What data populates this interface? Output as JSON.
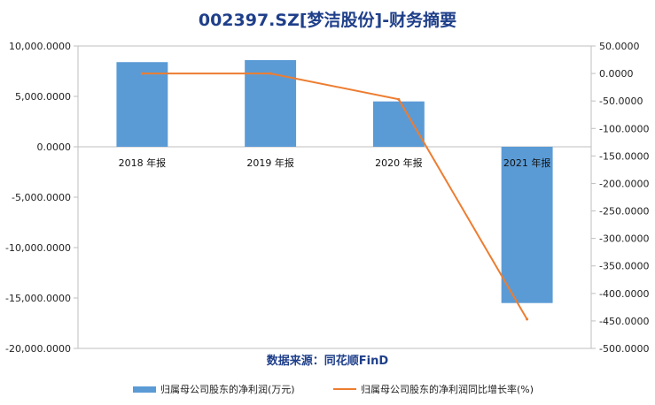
{
  "chart_data": {
    "type": "bar",
    "title": "002397.SZ[梦洁股份]-财务摘要",
    "categories": [
      "2018 年报",
      "2019 年报",
      "2020 年报",
      "2021 年报"
    ],
    "series": [
      {
        "name": "归属母公司股东的净利润(万元)",
        "type": "bar",
        "axis": "left",
        "color": "#5b9bd5",
        "values": [
          8400,
          8600,
          4500,
          -15500
        ]
      },
      {
        "name": "归属母公司股东的净利润同比增长率(%)",
        "type": "line",
        "axis": "right",
        "color": "#ed7d31",
        "values": [
          0.0,
          0.0,
          -47.0,
          -447.0
        ]
      }
    ],
    "left_axis": {
      "ylim": [
        -20000,
        10000
      ],
      "ticks": [
        "10,000.0000",
        "5,000.0000",
        "0.0000",
        "-5,000.0000",
        "-10,000.0000",
        "-15,000.0000",
        "-20,000.0000"
      ],
      "tick_values": [
        10000,
        5000,
        0,
        -5000,
        -10000,
        -15000,
        -20000
      ]
    },
    "right_axis": {
      "ylim": [
        -500,
        50
      ],
      "ticks": [
        "50.0000",
        "0.0000",
        "-50.0000",
        "-100.0000",
        "-150.0000",
        "-200.0000",
        "-250.0000",
        "-300.0000",
        "-350.0000",
        "-400.0000",
        "-450.0000",
        "-500.0000"
      ],
      "tick_values": [
        50,
        0,
        -50,
        -100,
        -150,
        -200,
        -250,
        -300,
        -350,
        -400,
        -450,
        -500
      ]
    },
    "source": "数据来源：同花顺FinD",
    "legend_position": "bottom"
  }
}
